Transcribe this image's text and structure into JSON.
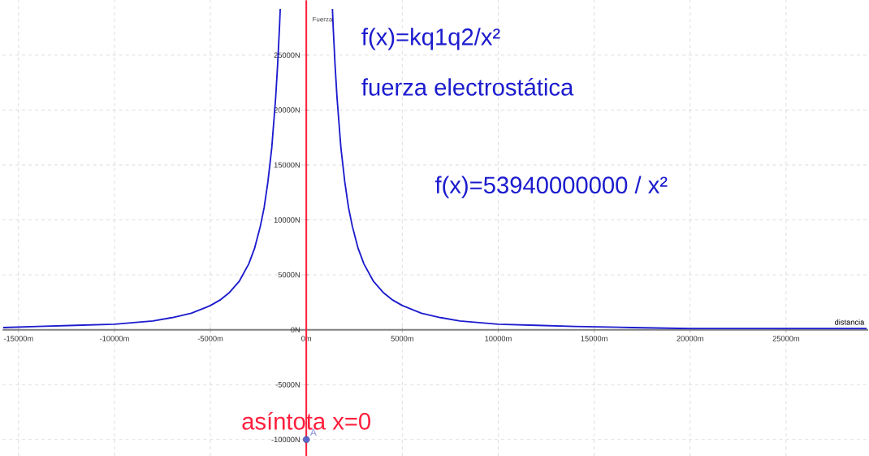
{
  "chart_data": {
    "type": "line",
    "xlabel": "distancia",
    "ylabel": "Fuerza",
    "annotations": [
      "f(x)=kq1q2/x²",
      "fuerza electrostática",
      "f(x)=53940000000 / x²"
    ],
    "xlim": [
      -15830,
      29280
    ],
    "ylim": [
      -11500,
      30000
    ],
    "xticks": [
      {
        "value": -15000,
        "label": "-15000m"
      },
      {
        "value": -10000,
        "label": "-10000m"
      },
      {
        "value": -5000,
        "label": "-5000m"
      },
      {
        "value": 0,
        "label": "0m"
      },
      {
        "value": 5000,
        "label": "5000m"
      },
      {
        "value": 10000,
        "label": "10000m"
      },
      {
        "value": 15000,
        "label": "15000m"
      },
      {
        "value": 20000,
        "label": "20000m"
      },
      {
        "value": 25000,
        "label": "25000m"
      }
    ],
    "yticks": [
      {
        "value": -10000,
        "label": "-10000N"
      },
      {
        "value": -5000,
        "label": "-5000N"
      },
      {
        "value": 0,
        "label": "0N"
      },
      {
        "value": 5000,
        "label": "5000N"
      },
      {
        "value": 10000,
        "label": "10000N"
      },
      {
        "value": 15000,
        "label": "15000N"
      },
      {
        "value": 20000,
        "label": "20000N"
      },
      {
        "value": 25000,
        "label": "25000N"
      }
    ],
    "grid": true,
    "ref_lines": [
      {
        "axis": "x",
        "value": 0,
        "label": "asíntota x=0",
        "color": "#ff1f3d"
      }
    ],
    "series": [
      {
        "color": "#1c1cce",
        "x": [
          -15800,
          -14000,
          -12000,
          -10000,
          -8000,
          -7000,
          -6000,
          -5000,
          -4500,
          -4000,
          -3500,
          -3000,
          -2700,
          -2400,
          -2200,
          -2000,
          -1800,
          -1600,
          -1500,
          -1400,
          -1360,
          0,
          1360,
          1400,
          1500,
          1600,
          1800,
          2000,
          2200,
          2400,
          2700,
          3000,
          3500,
          4000,
          4500,
          5000,
          6000,
          7000,
          8000,
          10000,
          12000,
          14000,
          17000,
          20000,
          24000,
          29200
        ],
        "values": [
          200,
          300,
          400,
          500,
          800,
          1100,
          1500,
          2200,
          2700,
          3400,
          4400,
          6000,
          7400,
          9400,
          11100,
          13500,
          16600,
          21100,
          24000,
          27500,
          29200,
          null,
          29200,
          27500,
          24000,
          21100,
          16600,
          13500,
          11100,
          9400,
          7400,
          6000,
          4400,
          3400,
          2700,
          2200,
          1500,
          1100,
          800,
          500,
          400,
          300,
          200,
          100,
          100,
          100
        ]
      },
      {
        "type": "scatter",
        "name": "A",
        "color": "#5c66cc",
        "x": [
          0
        ],
        "values": [
          -10000
        ]
      }
    ]
  }
}
